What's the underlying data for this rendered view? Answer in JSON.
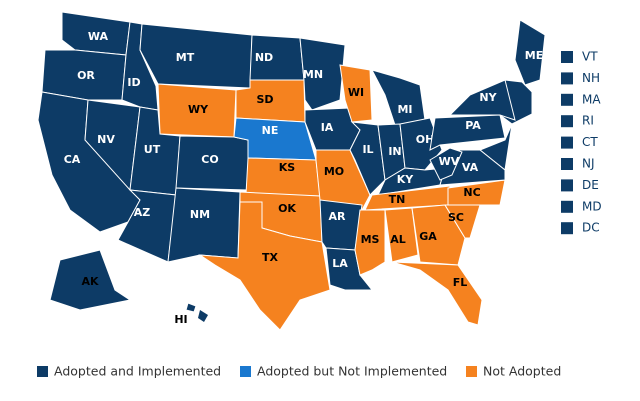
{
  "states": [
    {
      "label": "WA",
      "color": "#0d3b66"
    },
    {
      "label": "OR",
      "color": "#0d3b66"
    },
    {
      "label": "CA",
      "color": "#0d3b66"
    },
    {
      "label": "NV",
      "color": "#0d3b66"
    },
    {
      "label": "ID",
      "color": "#0d3b66"
    },
    {
      "label": "MT",
      "color": "#0d3b66"
    },
    {
      "label": "WY",
      "color": "#f5821f"
    },
    {
      "label": "UT",
      "color": "#0d3b66"
    },
    {
      "label": "AZ",
      "color": "#0d3b66"
    },
    {
      "label": "CO",
      "color": "#0d3b66"
    },
    {
      "label": "NM",
      "color": "#0d3b66"
    },
    {
      "label": "ND",
      "color": "#0d3b66"
    },
    {
      "label": "SD",
      "color": "#f5821f"
    },
    {
      "label": "NE",
      "color": "#1a78cf"
    },
    {
      "label": "KS",
      "color": "#f5821f"
    },
    {
      "label": "OK",
      "color": "#f5821f"
    },
    {
      "label": "TX",
      "color": "#f5821f"
    },
    {
      "label": "MN",
      "color": "#0d3b66"
    },
    {
      "label": "IA",
      "color": "#0d3b66"
    },
    {
      "label": "MO",
      "color": "#f5821f"
    },
    {
      "label": "AR",
      "color": "#0d3b66"
    },
    {
      "label": "LA",
      "color": "#0d3b66"
    },
    {
      "label": "WI",
      "color": "#f5821f"
    },
    {
      "label": "IL",
      "color": "#0d3b66"
    },
    {
      "label": "MI",
      "color": "#0d3b66"
    },
    {
      "label": "IN",
      "color": "#0d3b66"
    },
    {
      "label": "OH",
      "color": "#0d3b66"
    },
    {
      "label": "KY",
      "color": "#0d3b66"
    },
    {
      "label": "TN",
      "color": "#f5821f"
    },
    {
      "label": "MS",
      "color": "#f5821f"
    },
    {
      "label": "AL",
      "color": "#f5821f"
    },
    {
      "label": "GA",
      "color": "#f5821f"
    },
    {
      "label": "FL",
      "color": "#f5821f"
    },
    {
      "label": "SC",
      "color": "#f5821f"
    },
    {
      "label": "NC",
      "color": "#f5821f"
    },
    {
      "label": "VA",
      "color": "#0d3b66"
    },
    {
      "label": "WV",
      "color": "#0d3b66"
    },
    {
      "label": "PA",
      "color": "#0d3b66"
    },
    {
      "label": "NY",
      "color": "#0d3b66"
    },
    {
      "label": "ME",
      "color": "#0d3b66"
    },
    {
      "label": "AK",
      "color": "#0d3b66"
    },
    {
      "label": "HI",
      "color": "#0d3b66"
    }
  ],
  "small_states": [
    {
      "label": "VT",
      "color": "#0d3b66"
    },
    {
      "label": "NH",
      "color": "#0d3b66"
    },
    {
      "label": "MA",
      "color": "#0d3b66"
    },
    {
      "label": "RI",
      "color": "#0d3b66"
    },
    {
      "label": "CT",
      "color": "#0d3b66"
    },
    {
      "label": "NJ",
      "color": "#0d3b66"
    },
    {
      "label": "DE",
      "color": "#0d3b66"
    },
    {
      "label": "MD",
      "color": "#0d3b66"
    },
    {
      "label": "DC",
      "color": "#0d3b66"
    }
  ],
  "legend": [
    {
      "label": "Adopted and Implemented",
      "color": "#0d3b66"
    },
    {
      "label": "Adopted but Not Implemented",
      "color": "#1a78cf"
    },
    {
      "label": "Not Adopted",
      "color": "#f5821f"
    }
  ]
}
